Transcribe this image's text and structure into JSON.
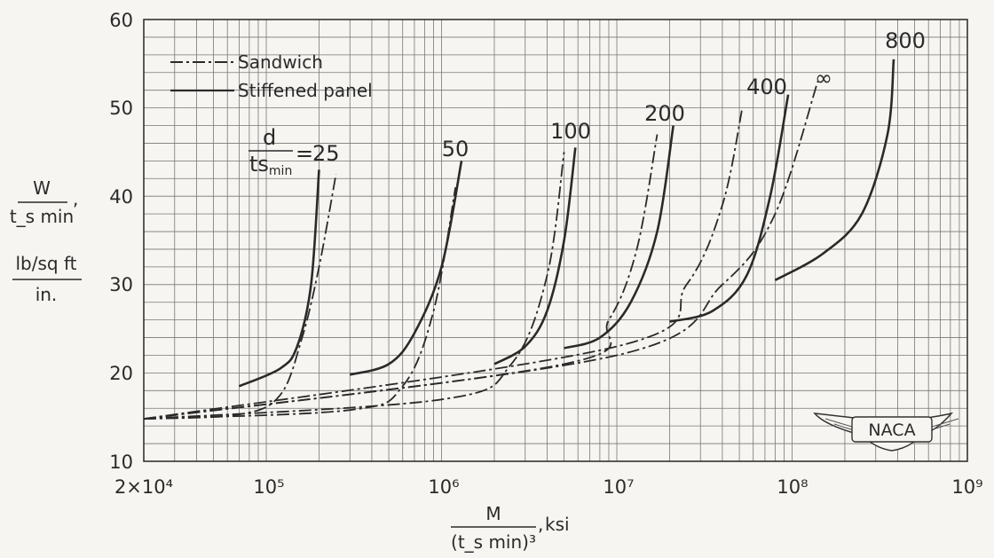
{
  "chart_data": {
    "type": "line",
    "x_scale": "log",
    "xlim": [
      20000,
      1000000000
    ],
    "ylim": [
      10,
      60
    ],
    "grid": true,
    "legend_position": "top-left",
    "x_tick_labels": [
      "2×10⁴",
      "10⁵",
      "10⁶",
      "10⁷",
      "10⁸",
      "10⁹"
    ],
    "y_tick_labels": [
      "10",
      "20",
      "30",
      "40",
      "50",
      "60"
    ],
    "x_ticks": [
      20000,
      100000,
      1000000,
      10000000,
      100000000,
      1000000000
    ],
    "y_ticks": [
      10,
      20,
      30,
      40,
      50,
      60
    ],
    "ylabel": {
      "numerator": "W",
      "denominator": "t_s min",
      "unit_numerator": "lb/sq ft",
      "unit_denominator": "in."
    },
    "xlabel": {
      "numerator": "M",
      "denominator": "(t_s min)³",
      "unit": "ksi"
    },
    "legend": [
      {
        "name": "Sandwich",
        "style": "dash-dot"
      },
      {
        "name": "Stiffened panel",
        "style": "solid"
      }
    ],
    "parameter": "d / t_s min",
    "curve_labels": [
      {
        "text": "d / t_s min = 25",
        "value": "25"
      },
      {
        "text": "50",
        "value": "50"
      },
      {
        "text": "100",
        "value": "100"
      },
      {
        "text": "200",
        "value": "200"
      },
      {
        "text": "400",
        "value": "400"
      },
      {
        "text": "∞",
        "value": "∞"
      },
      {
        "text": "800",
        "value": "800"
      }
    ],
    "series": [
      {
        "name": "Sandwich",
        "d_ratio": "25",
        "style": "dash-dot",
        "x": [
          20000,
          70000,
          120000,
          160000,
          200000,
          250000
        ],
        "y": [
          14.8,
          15.3,
          17.5,
          24.0,
          32.0,
          42.5
        ]
      },
      {
        "name": "Stiffened panel",
        "d_ratio": "25",
        "style": "solid",
        "x": [
          70000,
          120000,
          150000,
          180000,
          200000
        ],
        "y": [
          18.5,
          20.5,
          23.0,
          30.0,
          43.0
        ]
      },
      {
        "name": "Sandwich",
        "d_ratio": "50",
        "style": "dash-dot",
        "x": [
          20000,
          300000,
          600000,
          900000,
          1200000
        ],
        "y": [
          14.8,
          15.8,
          18.5,
          27.0,
          41.0
        ]
      },
      {
        "name": "Stiffened panel",
        "d_ratio": "50",
        "style": "solid",
        "x": [
          300000,
          500000,
          700000,
          1000000,
          1300000
        ],
        "y": [
          19.8,
          21.0,
          24.5,
          32.0,
          44.0
        ]
      },
      {
        "name": "Sandwich",
        "d_ratio": "100",
        "style": "dash-dot",
        "x": [
          20000,
          1000000,
          2500000,
          4000000,
          5000000
        ],
        "y": [
          14.8,
          17.0,
          21.0,
          31.0,
          45.0
        ]
      },
      {
        "name": "Stiffened panel",
        "d_ratio": "100",
        "style": "solid",
        "x": [
          2000000,
          3000000,
          4000000,
          5000000,
          5800000
        ],
        "y": [
          21.0,
          23.0,
          27.0,
          35.0,
          45.5
        ]
      },
      {
        "name": "Sandwich",
        "d_ratio": "200",
        "style": "dash-dot",
        "x": [
          20000,
          5000000,
          9000000,
          13000000,
          17000000
        ],
        "y": [
          14.8,
          21.0,
          26.0,
          34.0,
          47.0
        ]
      },
      {
        "name": "Stiffened panel",
        "d_ratio": "200",
        "style": "solid",
        "x": [
          5000000,
          8000000,
          12000000,
          17000000,
          21000000
        ],
        "y": [
          22.8,
          24.0,
          28.0,
          36.0,
          48.0
        ]
      },
      {
        "name": "Sandwich",
        "d_ratio": "400",
        "style": "dash-dot",
        "x": [
          20000,
          10000000,
          25000000,
          40000000,
          52000000
        ],
        "y": [
          14.8,
          23.0,
          30.0,
          39.0,
          50.0
        ]
      },
      {
        "name": "Stiffened panel",
        "d_ratio": "400",
        "style": "solid",
        "x": [
          20000000,
          35000000,
          55000000,
          75000000,
          95000000
        ],
        "y": [
          25.8,
          27.0,
          31.0,
          40.0,
          51.5
        ]
      },
      {
        "name": "Sandwich",
        "d_ratio": "∞",
        "style": "dash-dot",
        "x": [
          20000,
          10000000,
          40000000,
          80000000,
          140000000
        ],
        "y": [
          14.8,
          22.0,
          30.0,
          38.0,
          53.0
        ]
      },
      {
        "name": "Stiffened panel",
        "d_ratio": "800",
        "style": "solid",
        "x": [
          80000000,
          150000000,
          250000000,
          350000000,
          380000000
        ],
        "y": [
          30.5,
          33.5,
          38.0,
          47.0,
          55.5
        ]
      }
    ],
    "logo_text": "NACA"
  }
}
